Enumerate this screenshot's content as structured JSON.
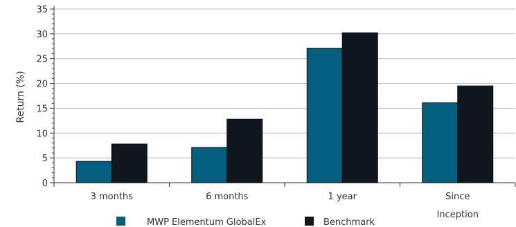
{
  "chart_data": {
    "type": "bar",
    "title": "",
    "xlabel": "",
    "ylabel": "Return (%)",
    "ylim": [
      0,
      35
    ],
    "yticks": [
      0,
      5,
      10,
      15,
      20,
      25,
      30,
      35
    ],
    "grid": "horizontal",
    "legend_position": "bottom",
    "categories": [
      [
        "3 months"
      ],
      [
        "6 months"
      ],
      [
        "1 year"
      ],
      [
        "Since",
        "Inception"
      ]
    ],
    "series": [
      {
        "name": "MWP Elementum GlobalEx",
        "color": "#035f7d",
        "values": [
          4.3,
          7.1,
          27.1,
          16.1
        ]
      },
      {
        "name": "Benchmark",
        "color": "#10161d",
        "values": [
          7.8,
          12.8,
          30.2,
          19.5
        ]
      }
    ]
  }
}
